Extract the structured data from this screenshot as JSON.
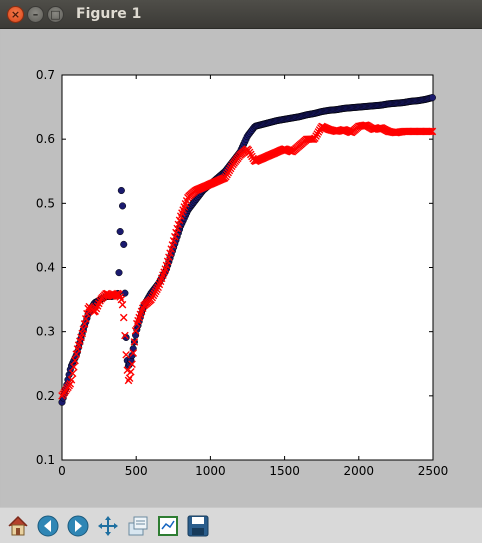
{
  "window": {
    "title": "Figure 1"
  },
  "toolbar": {
    "buttons": [
      "home-icon",
      "back-icon",
      "forward-icon",
      "pan-icon",
      "zoom-icon",
      "subplots-icon",
      "save-icon"
    ]
  },
  "chart_data": {
    "type": "scatter",
    "title": "",
    "xlabel": "",
    "ylabel": "",
    "xlim": [
      0,
      2500
    ],
    "ylim": [
      0.1,
      0.7
    ],
    "xticks": [
      0,
      500,
      1000,
      1500,
      2000,
      2500
    ],
    "yticks": [
      0.1,
      0.2,
      0.3,
      0.4,
      0.5,
      0.6,
      0.7
    ],
    "grid": false,
    "series": [
      {
        "marker": "o",
        "color": "#1a1a6e",
        "x": [
          0,
          30,
          60,
          100,
          140,
          180,
          220,
          260,
          300,
          340,
          380,
          400,
          410,
          420,
          430,
          440,
          450,
          470,
          500,
          550,
          600,
          650,
          700,
          750,
          800,
          850,
          900,
          950,
          1000,
          1050,
          1100,
          1150,
          1200,
          1250,
          1300,
          1350,
          1400,
          1450,
          1500,
          1550,
          1600,
          1650,
          1700,
          1750,
          1800,
          1850,
          1900,
          1950,
          2000,
          2050,
          2100,
          2150,
          2200,
          2250,
          2300,
          2350,
          2400,
          2450,
          2500
        ],
        "y": [
          0.19,
          0.215,
          0.245,
          0.265,
          0.3,
          0.33,
          0.345,
          0.35,
          0.355,
          0.355,
          0.36,
          0.52,
          0.49,
          0.4,
          0.3,
          0.255,
          0.245,
          0.26,
          0.3,
          0.34,
          0.36,
          0.375,
          0.395,
          0.43,
          0.465,
          0.49,
          0.505,
          0.52,
          0.53,
          0.54,
          0.55,
          0.565,
          0.58,
          0.605,
          0.62,
          0.623,
          0.626,
          0.629,
          0.631,
          0.633,
          0.635,
          0.638,
          0.64,
          0.643,
          0.645,
          0.646,
          0.648,
          0.649,
          0.65,
          0.651,
          0.652,
          0.653,
          0.655,
          0.656,
          0.657,
          0.659,
          0.66,
          0.662,
          0.665
        ]
      },
      {
        "marker": "x",
        "color": "#ff0000",
        "x": [
          0,
          30,
          60,
          100,
          140,
          180,
          220,
          260,
          300,
          340,
          380,
          400,
          410,
          420,
          430,
          440,
          450,
          470,
          500,
          550,
          600,
          650,
          700,
          750,
          800,
          850,
          900,
          950,
          1000,
          1050,
          1100,
          1150,
          1200,
          1250,
          1300,
          1350,
          1400,
          1450,
          1500,
          1550,
          1600,
          1650,
          1700,
          1750,
          1800,
          1850,
          1900,
          1950,
          2000,
          2050,
          2100,
          2150,
          2200,
          2250,
          2300,
          2350,
          2400,
          2450,
          2500
        ],
        "y": [
          0.2,
          0.21,
          0.22,
          0.27,
          0.3,
          0.34,
          0.33,
          0.35,
          0.36,
          0.355,
          0.36,
          0.35,
          0.34,
          0.31,
          0.27,
          0.24,
          0.22,
          0.245,
          0.31,
          0.34,
          0.35,
          0.37,
          0.4,
          0.44,
          0.48,
          0.51,
          0.52,
          0.525,
          0.53,
          0.535,
          0.54,
          0.56,
          0.575,
          0.585,
          0.565,
          0.57,
          0.575,
          0.58,
          0.585,
          0.58,
          0.59,
          0.6,
          0.6,
          0.62,
          0.615,
          0.612,
          0.615,
          0.61,
          0.62,
          0.622,
          0.615,
          0.618,
          0.612,
          0.61,
          0.612,
          0.612,
          0.612,
          0.612,
          0.612
        ]
      }
    ]
  }
}
